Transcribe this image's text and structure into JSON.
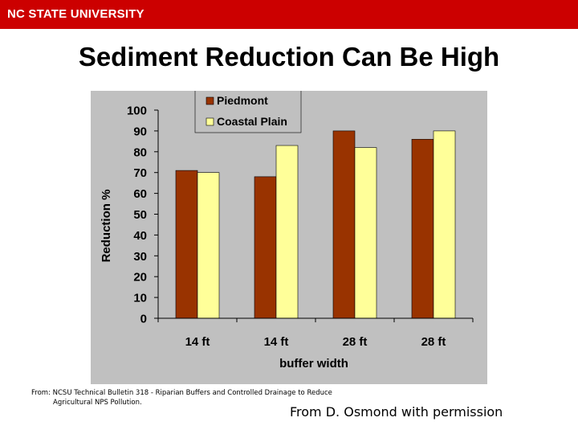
{
  "header": {
    "brand": "NC STATE UNIVERSITY",
    "brand_color": "#cc0000"
  },
  "slide": {
    "title": "Sediment Reduction Can Be High"
  },
  "chart_data": {
    "type": "bar",
    "title": "",
    "xlabel": "buffer width",
    "ylabel": "Reduction %",
    "categories": [
      "14 ft",
      "14 ft",
      "28 ft",
      "28 ft"
    ],
    "series": [
      {
        "name": "Piedmont",
        "values": [
          71,
          68,
          90,
          86
        ],
        "color": "#993300"
      },
      {
        "name": "Coastal Plain",
        "values": [
          70,
          83,
          82,
          90
        ],
        "color": "#ffff99"
      }
    ],
    "ylim": [
      0,
      100
    ],
    "yticks": [
      0,
      10,
      20,
      30,
      40,
      50,
      60,
      70,
      80,
      90,
      100
    ],
    "grid": false,
    "legend_position": "top-center",
    "plot_background": "#c0c0c0"
  },
  "footer": {
    "source_line1": "From:  NCSU Technical Bulletin 318 - Riparian Buffers and Controlled Drainage to Reduce",
    "source_line2": "Agricultural NPS Pollution.",
    "credit": "From D. Osmond with permission"
  }
}
